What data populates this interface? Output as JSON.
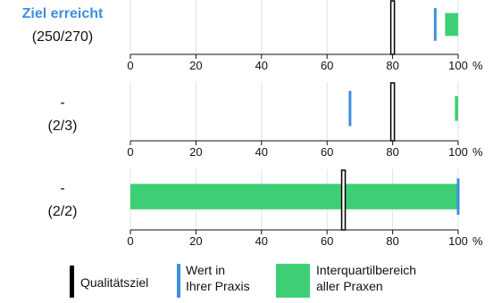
{
  "chart_data": {
    "type": "bar",
    "xlim": [
      0,
      100
    ],
    "x_ticks": [
      0,
      20,
      40,
      60,
      80,
      100
    ],
    "x_unit": "%",
    "grid": true,
    "rows": [
      {
        "status": "Ziel erreicht",
        "status_highlight": true,
        "count": "(250/270)",
        "target": 80,
        "practice_value": 93,
        "iqr": [
          96,
          100
        ]
      },
      {
        "status": "-",
        "status_highlight": false,
        "count": "(2/3)",
        "target": 80,
        "practice_value": 67,
        "iqr": [
          99,
          100
        ]
      },
      {
        "status": "-",
        "status_highlight": false,
        "count": "(2/2)",
        "target": 65,
        "practice_value": 100,
        "iqr": [
          0,
          100
        ]
      }
    ],
    "legend": [
      {
        "key": "target",
        "label_lines": [
          "Qualitätsziel"
        ]
      },
      {
        "key": "practice",
        "label_lines": [
          "Wert in",
          "Ihrer Praxis"
        ]
      },
      {
        "key": "iqr",
        "label_lines": [
          "Interquartilbereich",
          "aller Praxen"
        ]
      }
    ]
  },
  "colors": {
    "target_fill": "#ffffff",
    "target_stroke": "#000000",
    "practice": "#3d8fe0",
    "iqr": "#3ecf76",
    "grid": "#e3e3e3",
    "axis": "#111111",
    "status_ok": "#3d8fe0"
  }
}
